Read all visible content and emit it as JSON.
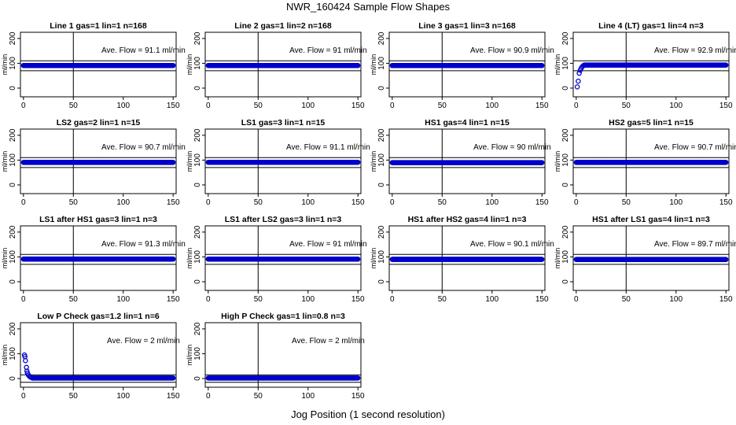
{
  "page": {
    "title": "NWR_160424  Sample Flow Shapes",
    "x_title": "Jog Position (1 second resolution)"
  },
  "style": {
    "point_color": "#0000cc",
    "line_color": "#000000"
  },
  "chart_data": [
    {
      "type": "scatter",
      "title": "Line 1 gas=1 lin=1 n=168",
      "ylabel": "ml/min",
      "annotation": "Ave. Flow = 91.1  ml/min",
      "xlim": [
        -3,
        153
      ],
      "ylim": [
        -35,
        225
      ],
      "xticks": [
        0,
        50,
        100,
        150
      ],
      "yticks": [
        0,
        100,
        200
      ],
      "vline": 50,
      "hlines": [
        70,
        110
      ],
      "steady": 91.1,
      "start": [],
      "decay": null
    },
    {
      "type": "scatter",
      "title": "Line 2 gas=1 lin=2 n=168",
      "ylabel": "ml/min",
      "annotation": "Ave. Flow = 91  ml/min",
      "xlim": [
        -3,
        153
      ],
      "ylim": [
        -35,
        225
      ],
      "xticks": [
        0,
        50,
        100,
        150
      ],
      "yticks": [
        0,
        100,
        200
      ],
      "vline": 50,
      "hlines": [
        70,
        110
      ],
      "steady": 91,
      "start": [],
      "decay": null
    },
    {
      "type": "scatter",
      "title": "Line 3 gas=1 lin=3 n=168",
      "ylabel": "ml/min",
      "annotation": "Ave. Flow = 90.9  ml/min",
      "xlim": [
        -3,
        153
      ],
      "ylim": [
        -35,
        225
      ],
      "xticks": [
        0,
        50,
        100,
        150
      ],
      "yticks": [
        0,
        100,
        200
      ],
      "vline": 50,
      "hlines": [
        70,
        110
      ],
      "steady": 90.9,
      "start": [],
      "decay": null
    },
    {
      "type": "scatter",
      "title": "Line 4 (LT) gas=1 lin=4 n=3",
      "ylabel": "ml/min",
      "annotation": "Ave. Flow = 92.9  ml/min",
      "xlim": [
        -3,
        153
      ],
      "ylim": [
        -35,
        225
      ],
      "xticks": [
        0,
        50,
        100,
        150
      ],
      "yticks": [
        0,
        100,
        200
      ],
      "vline": 50,
      "hlines": [
        70,
        110
      ],
      "steady": 92.9,
      "start": [
        [
          1,
          5
        ],
        [
          2,
          28
        ],
        [
          3,
          60
        ],
        [
          4,
          72
        ],
        [
          5,
          80
        ],
        [
          6,
          86
        ],
        [
          7,
          90
        ]
      ],
      "decay": null
    },
    {
      "type": "scatter",
      "title": "LS2 gas=2 lin=1 n=15",
      "ylabel": "ml/min",
      "annotation": "Ave. Flow = 90.7  ml/min",
      "xlim": [
        -3,
        153
      ],
      "ylim": [
        -35,
        225
      ],
      "xticks": [
        0,
        50,
        100,
        150
      ],
      "yticks": [
        0,
        100,
        200
      ],
      "vline": 50,
      "hlines": [
        70,
        110
      ],
      "steady": 90.7,
      "start": [],
      "decay": null
    },
    {
      "type": "scatter",
      "title": "LS1 gas=3 lin=1 n=15",
      "ylabel": "ml/min",
      "annotation": "Ave. Flow = 91.1  ml/min",
      "xlim": [
        -3,
        153
      ],
      "ylim": [
        -35,
        225
      ],
      "xticks": [
        0,
        50,
        100,
        150
      ],
      "yticks": [
        0,
        100,
        200
      ],
      "vline": 50,
      "hlines": [
        70,
        110
      ],
      "steady": 91.1,
      "start": [],
      "decay": null
    },
    {
      "type": "scatter",
      "title": "HS1 gas=4 lin=1 n=15",
      "ylabel": "ml/min",
      "annotation": "Ave. Flow = 90  ml/min",
      "xlim": [
        -3,
        153
      ],
      "ylim": [
        -35,
        225
      ],
      "xticks": [
        0,
        50,
        100,
        150
      ],
      "yticks": [
        0,
        100,
        200
      ],
      "vline": 50,
      "hlines": [
        70,
        110
      ],
      "steady": 90,
      "start": [],
      "decay": null
    },
    {
      "type": "scatter",
      "title": "HS2 gas=5 lin=1 n=15",
      "ylabel": "ml/min",
      "annotation": "Ave. Flow = 90.7  ml/min",
      "xlim": [
        -3,
        153
      ],
      "ylim": [
        -35,
        225
      ],
      "xticks": [
        0,
        50,
        100,
        150
      ],
      "yticks": [
        0,
        100,
        200
      ],
      "vline": 50,
      "hlines": [
        70,
        110
      ],
      "steady": 90.7,
      "start": [],
      "decay": null
    },
    {
      "type": "scatter",
      "title": "LS1 after HS1 gas=3 lin=1 n=3",
      "ylabel": "ml/min",
      "annotation": "Ave. Flow = 91.3  ml/min",
      "xlim": [
        -3,
        153
      ],
      "ylim": [
        -35,
        225
      ],
      "xticks": [
        0,
        50,
        100,
        150
      ],
      "yticks": [
        0,
        100,
        200
      ],
      "vline": 50,
      "hlines": [
        70,
        110
      ],
      "steady": 91.3,
      "start": [],
      "decay": null
    },
    {
      "type": "scatter",
      "title": "LS1 after LS2 gas=3 lin=1 n=3",
      "ylabel": "ml/min",
      "annotation": "Ave. Flow = 91  ml/min",
      "xlim": [
        -3,
        153
      ],
      "ylim": [
        -35,
        225
      ],
      "xticks": [
        0,
        50,
        100,
        150
      ],
      "yticks": [
        0,
        100,
        200
      ],
      "vline": 50,
      "hlines": [
        70,
        110
      ],
      "steady": 91,
      "start": [],
      "decay": null
    },
    {
      "type": "scatter",
      "title": "HS1 after HS2 gas=4 lin=1 n=3",
      "ylabel": "ml/min",
      "annotation": "Ave. Flow = 90.1  ml/min",
      "xlim": [
        -3,
        153
      ],
      "ylim": [
        -35,
        225
      ],
      "xticks": [
        0,
        50,
        100,
        150
      ],
      "yticks": [
        0,
        100,
        200
      ],
      "vline": 50,
      "hlines": [
        70,
        110
      ],
      "steady": 90.1,
      "start": [],
      "decay": null
    },
    {
      "type": "scatter",
      "title": "HS1 after LS1 gas=4 lin=1 n=3",
      "ylabel": "ml/min",
      "annotation": "Ave. Flow = 89.7  ml/min",
      "xlim": [
        -3,
        153
      ],
      "ylim": [
        -35,
        225
      ],
      "xticks": [
        0,
        50,
        100,
        150
      ],
      "yticks": [
        0,
        100,
        200
      ],
      "vline": 50,
      "hlines": [
        70,
        110
      ],
      "steady": 89.7,
      "start": [],
      "decay": null
    },
    {
      "type": "scatter",
      "title": "Low P Check gas=1.2 lin=1 n=6",
      "ylabel": "ml/min",
      "annotation": "Ave. Flow = 2  ml/min",
      "xlim": [
        -3,
        153
      ],
      "ylim": [
        -35,
        225
      ],
      "xticks": [
        0,
        50,
        100,
        150
      ],
      "yticks": [
        0,
        100,
        200
      ],
      "vline": 50,
      "hlines": [
        -15,
        15
      ],
      "steady": 2,
      "start": [
        [
          1,
          95
        ],
        [
          1.5,
          88
        ],
        [
          2,
          72
        ],
        [
          3,
          45
        ],
        [
          3.5,
          30
        ],
        [
          4,
          22
        ],
        [
          5,
          14
        ],
        [
          6,
          9
        ],
        [
          7,
          6
        ],
        [
          8,
          4
        ]
      ],
      "decay": null
    },
    {
      "type": "scatter",
      "title": "High P Check gas=1 lin=0.8 n=3",
      "ylabel": "ml/min",
      "annotation": "Ave. Flow = 2  ml/min",
      "xlim": [
        -3,
        153
      ],
      "ylim": [
        -35,
        225
      ],
      "xticks": [
        0,
        50,
        100,
        150
      ],
      "yticks": [
        0,
        100,
        200
      ],
      "vline": 50,
      "hlines": [
        -15,
        15
      ],
      "steady": 2,
      "start": [],
      "decay": null
    }
  ]
}
